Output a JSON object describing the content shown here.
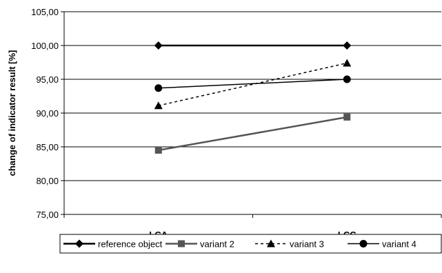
{
  "chart_data": {
    "type": "line",
    "categories": [
      "LCA",
      "LCC"
    ],
    "ylabel": "change of indicator result [%]",
    "ylim": [
      75,
      105
    ],
    "yticks": [
      "75,00",
      "80,00",
      "85,00",
      "90,00",
      "95,00",
      "100,00",
      "105,00"
    ],
    "grid": true,
    "legend_position": "bottom",
    "series": [
      {
        "name": "reference object",
        "values": [
          100.0,
          100.0
        ],
        "marker": "diamond",
        "color": "#000000",
        "dash": "solid"
      },
      {
        "name": "variant 2",
        "values": [
          84.5,
          89.4
        ],
        "marker": "square",
        "color": "#555555",
        "dash": "solid"
      },
      {
        "name": "variant 3",
        "values": [
          91.1,
          97.4
        ],
        "marker": "triangle",
        "color": "#000000",
        "dash": "dashed"
      },
      {
        "name": "variant 4",
        "values": [
          93.7,
          95.0
        ],
        "marker": "circle",
        "color": "#000000",
        "dash": "solid"
      }
    ]
  }
}
